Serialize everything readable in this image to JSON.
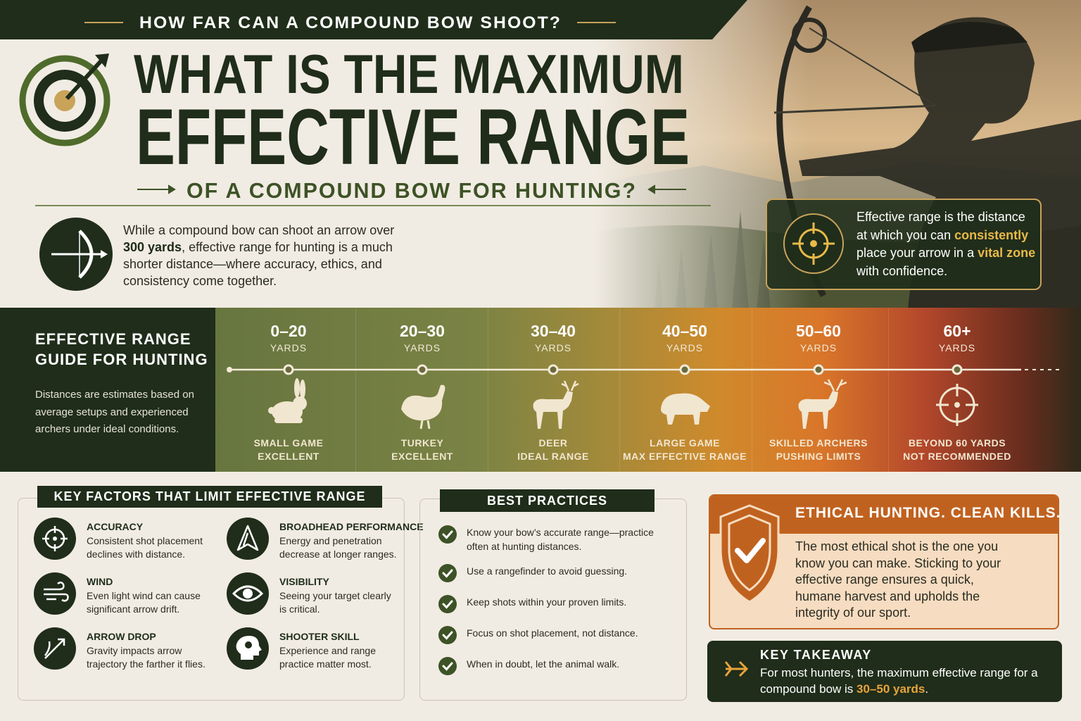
{
  "header": {
    "kicker": "HOW FAR CAN A COMPOUND BOW SHOOT?",
    "title_line1": "WHAT IS THE MAXIMUM",
    "title_line2": "EFFECTIVE RANGE",
    "subtitle": "OF A COMPOUND BOW FOR HUNTING?"
  },
  "intro": {
    "parts": [
      "While a compound bow can shoot an arrow over ",
      "300 yards",
      ", effective range for hunting is a much shorter distance—where accuracy, ethics, and consistency come together."
    ]
  },
  "definition": {
    "parts": [
      "Effective range is the distance at which you can ",
      "consistently",
      " place your arrow in a ",
      "vital zone",
      " with confidence."
    ]
  },
  "range_guide": {
    "title": [
      "EFFECTIVE RANGE",
      "GUIDE FOR HUNTING"
    ],
    "note": "Distances are estimates based on average setups and experienced archers under ideal conditions.",
    "bands": [
      {
        "range": "0–20",
        "unit": "YARDS",
        "label": "SMALL GAME",
        "rating": "EXCELLENT"
      },
      {
        "range": "20–30",
        "unit": "YARDS",
        "label": "TURKEY",
        "rating": "EXCELLENT"
      },
      {
        "range": "30–40",
        "unit": "YARDS",
        "label": "DEER",
        "rating": "IDEAL RANGE"
      },
      {
        "range": "40–50",
        "unit": "YARDS",
        "label": "LARGE GAME",
        "rating": "MAX EFFECTIVE RANGE"
      },
      {
        "range": "50–60",
        "unit": "YARDS",
        "label": "SKILLED ARCHERS",
        "rating": "PUSHING LIMITS"
      },
      {
        "range": "60+",
        "unit": "YARDS",
        "label": "BEYOND 60 YARDS",
        "rating": "NOT RECOMMENDED"
      }
    ]
  },
  "key_factors": {
    "title": "KEY FACTORS THAT LIMIT EFFECTIVE RANGE",
    "items": [
      {
        "title": "ACCURACY",
        "text": "Consistent shot placement declines with distance."
      },
      {
        "title": "WIND",
        "text": "Even light wind can cause significant arrow drift."
      },
      {
        "title": "ARROW DROP",
        "text": "Gravity impacts arrow trajectory the farther it flies."
      },
      {
        "title": "BROADHEAD PERFORMANCE",
        "text": "Energy and penetration decrease at longer ranges."
      },
      {
        "title": "VISIBILITY",
        "text": "Seeing your target clearly is critical."
      },
      {
        "title": "SHOOTER SKILL",
        "text": "Experience and range practice matter most."
      }
    ]
  },
  "best_practices": {
    "title": "BEST PRACTICES",
    "items": [
      "Know your bow’s accurate range—practice often at hunting distances.",
      "Use a rangefinder to avoid guessing.",
      "Keep shots within your proven limits.",
      "Focus on shot placement, not distance.",
      "When in doubt, let the animal walk."
    ]
  },
  "ethics": {
    "title": "ETHICAL HUNTING. CLEAN KILLS.",
    "text": "The most ethical shot is the one you know you can make. Sticking to your effective range ensures a quick, humane harvest and upholds the integrity of our sport."
  },
  "takeaway": {
    "title": "KEY TAKEAWAY",
    "parts": [
      "For most hunters, the maximum effective range for a compound bow is ",
      "30–50 yards",
      "."
    ]
  }
}
